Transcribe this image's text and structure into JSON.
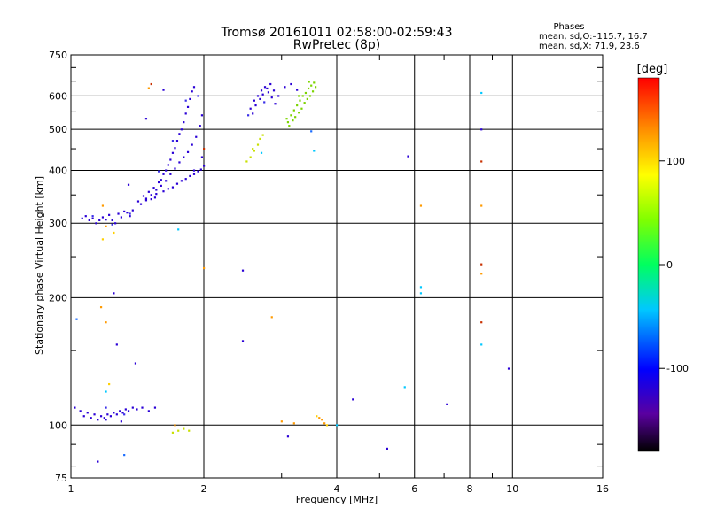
{
  "chart_data": {
    "type": "scatter",
    "title": "Tromsø 20161011 02:58:00-02:59:43",
    "subtitle": "RwPretec (8p)",
    "xlabel": "Frequency [MHz]",
    "ylabel": "Stationary phase Virtual Height [km]",
    "x_scale": "log",
    "y_scale": "log",
    "xlim": [
      1,
      16
    ],
    "ylim": [
      75,
      750
    ],
    "x_ticks": [
      1,
      2,
      4,
      6,
      8,
      10,
      16
    ],
    "x_tick_labels": [
      "1",
      "2",
      "4",
      "6",
      "8",
      "10",
      "16"
    ],
    "y_ticks": [
      75,
      100,
      200,
      300,
      400,
      500,
      600,
      750
    ],
    "y_tick_labels": [
      "75",
      "100",
      "200",
      "300",
      "400",
      "500",
      "600",
      "750"
    ],
    "grid": true,
    "phase_stats": {
      "heading": "Phases",
      "line_o": "mean, sd,O:–115.7, 16.7",
      "line_x": "mean, sd,X:  71.9, 23.6"
    },
    "colorbar": {
      "label": "[deg]",
      "range": [
        -180,
        180
      ],
      "ticks": [
        100,
        0,
        -100
      ],
      "tick_labels": [
        "100",
        "0",
        "-100"
      ]
    },
    "series": [
      {
        "color": "#2a00d6",
        "points": [
          [
            1.06,
            308
          ],
          [
            1.08,
            312
          ],
          [
            1.1,
            305
          ],
          [
            1.12,
            308
          ],
          [
            1.14,
            300
          ],
          [
            1.16,
            305
          ],
          [
            1.18,
            310
          ],
          [
            1.2,
            306
          ],
          [
            1.22,
            314
          ],
          [
            1.24,
            305
          ],
          [
            1.26,
            300
          ],
          [
            1.28,
            316
          ],
          [
            1.3,
            310
          ],
          [
            1.32,
            320
          ],
          [
            1.34,
            318
          ],
          [
            1.36,
            312
          ],
          [
            1.38,
            322
          ],
          [
            1.42,
            338
          ],
          [
            1.44,
            333
          ],
          [
            1.46,
            348
          ],
          [
            1.48,
            343
          ],
          [
            1.5,
            356
          ],
          [
            1.52,
            350
          ],
          [
            1.54,
            364
          ],
          [
            1.56,
            360
          ],
          [
            1.58,
            375
          ],
          [
            1.6,
            380
          ],
          [
            1.62,
            392
          ],
          [
            1.64,
            400
          ],
          [
            1.66,
            412
          ],
          [
            1.68,
            424
          ],
          [
            1.7,
            440
          ],
          [
            1.72,
            452
          ],
          [
            1.74,
            470
          ],
          [
            1.76,
            488
          ],
          [
            1.78,
            500
          ],
          [
            1.8,
            520
          ],
          [
            1.82,
            545
          ],
          [
            1.84,
            565
          ],
          [
            1.86,
            590
          ],
          [
            1.88,
            615
          ],
          [
            1.9,
            630
          ],
          [
            1.52,
            342
          ],
          [
            1.56,
            352
          ],
          [
            1.6,
            368
          ],
          [
            1.64,
            378
          ],
          [
            1.68,
            392
          ],
          [
            1.72,
            404
          ],
          [
            1.76,
            418
          ],
          [
            1.8,
            430
          ],
          [
            1.84,
            442
          ],
          [
            1.88,
            460
          ],
          [
            1.92,
            480
          ],
          [
            1.96,
            510
          ],
          [
            1.98,
            540
          ],
          [
            1.48,
            340
          ],
          [
            1.55,
            345
          ],
          [
            1.62,
            357
          ],
          [
            1.7,
            365
          ],
          [
            1.78,
            378
          ],
          [
            1.86,
            388
          ],
          [
            1.94,
            398
          ],
          [
            2.0,
            410
          ],
          [
            1.66,
            362
          ],
          [
            1.74,
            372
          ],
          [
            1.82,
            382
          ],
          [
            1.9,
            392
          ],
          [
            1.97,
            402
          ],
          [
            1.05,
            108
          ],
          [
            1.07,
            105
          ],
          [
            1.09,
            107
          ],
          [
            1.11,
            104
          ],
          [
            1.13,
            106
          ],
          [
            1.15,
            103
          ],
          [
            1.17,
            105
          ],
          [
            1.19,
            104
          ],
          [
            1.21,
            106
          ],
          [
            1.23,
            105
          ],
          [
            1.25,
            107
          ],
          [
            1.27,
            106
          ],
          [
            1.29,
            108
          ],
          [
            1.31,
            107
          ],
          [
            1.33,
            109
          ],
          [
            1.35,
            108
          ],
          [
            1.38,
            110
          ],
          [
            1.41,
            109
          ],
          [
            1.45,
            110
          ],
          [
            1.5,
            108
          ],
          [
            1.55,
            110
          ],
          [
            1.02,
            110
          ],
          [
            1.2,
            103
          ],
          [
            1.3,
            102
          ],
          [
            2.55,
            560
          ],
          [
            2.6,
            585
          ],
          [
            2.65,
            600
          ],
          [
            2.7,
            618
          ],
          [
            2.75,
            630
          ],
          [
            2.8,
            612
          ],
          [
            2.85,
            595
          ],
          [
            2.9,
            575
          ],
          [
            2.58,
            545
          ],
          [
            2.62,
            570
          ],
          [
            2.68,
            590
          ],
          [
            2.72,
            605
          ],
          [
            2.78,
            625
          ],
          [
            2.83,
            640
          ],
          [
            2.88,
            618
          ],
          [
            2.95,
            600
          ],
          [
            3.05,
            630
          ],
          [
            3.15,
            640
          ],
          [
            3.25,
            620
          ],
          [
            1.48,
            530
          ],
          [
            1.62,
            620
          ],
          [
            2.45,
            232
          ],
          [
            2.45,
            158
          ],
          [
            1.35,
            370
          ],
          [
            1.25,
            205
          ],
          [
            1.4,
            140
          ],
          [
            1.27,
            155
          ],
          [
            3.1,
            94
          ],
          [
            1.15,
            82
          ],
          [
            5.2,
            88
          ],
          [
            4.35,
            115
          ],
          [
            7.1,
            112
          ],
          [
            5.8,
            432
          ],
          [
            8.5,
            500
          ],
          [
            9.8,
            136
          ],
          [
            1.9,
            400
          ],
          [
            1.98,
            430
          ]
        ]
      },
      {
        "color": "#3a2fe8",
        "points": [
          [
            1.12,
            312
          ],
          [
            1.24,
            298
          ],
          [
            1.36,
            316
          ],
          [
            1.58,
            398
          ],
          [
            1.7,
            470
          ],
          [
            1.82,
            585
          ],
          [
            1.94,
            600
          ],
          [
            1.2,
            110
          ],
          [
            1.32,
            106
          ],
          [
            2.52,
            540
          ],
          [
            2.74,
            580
          ]
        ]
      },
      {
        "color": "#7cd400",
        "points": [
          [
            3.1,
            520
          ],
          [
            3.15,
            540
          ],
          [
            3.2,
            555
          ],
          [
            3.25,
            570
          ],
          [
            3.3,
            585
          ],
          [
            3.35,
            600
          ],
          [
            3.4,
            610
          ],
          [
            3.45,
            625
          ],
          [
            3.5,
            635
          ],
          [
            3.55,
            645
          ],
          [
            3.12,
            510
          ],
          [
            3.18,
            525
          ],
          [
            3.22,
            535
          ],
          [
            3.28,
            548
          ],
          [
            3.33,
            560
          ],
          [
            3.38,
            578
          ],
          [
            3.43,
            590
          ],
          [
            3.48,
            600
          ],
          [
            3.53,
            615
          ],
          [
            3.58,
            630
          ],
          [
            3.08,
            530
          ],
          [
            3.28,
            600
          ],
          [
            3.46,
            648
          ]
        ]
      },
      {
        "color": "#c8e000",
        "points": [
          [
            2.5,
            420
          ],
          [
            2.55,
            430
          ],
          [
            2.6,
            445
          ],
          [
            2.65,
            460
          ],
          [
            2.68,
            475
          ],
          [
            2.72,
            485
          ],
          [
            2.58,
            450
          ],
          [
            1.7,
            96
          ],
          [
            1.75,
            97
          ],
          [
            1.8,
            98
          ],
          [
            1.85,
            97
          ]
        ]
      },
      {
        "color": "#ff9a00",
        "points": [
          [
            1.18,
            330
          ],
          [
            1.2,
            295
          ],
          [
            1.2,
            175
          ],
          [
            1.17,
            190
          ],
          [
            2.85,
            180
          ],
          [
            3.0,
            102
          ],
          [
            3.75,
            101
          ],
          [
            3.7,
            103
          ],
          [
            3.65,
            104
          ],
          [
            3.2,
            101
          ],
          [
            6.2,
            330
          ],
          [
            8.5,
            330
          ],
          [
            8.5,
            228
          ],
          [
            1.5,
            626
          ],
          [
            2.0,
            235
          ],
          [
            1.72,
            100
          ]
        ]
      },
      {
        "color": "#ffd000",
        "points": [
          [
            1.18,
            275
          ],
          [
            1.22,
            125
          ],
          [
            3.6,
            105
          ],
          [
            3.8,
            100
          ],
          [
            1.25,
            285
          ]
        ]
      },
      {
        "color": "#c83000",
        "points": [
          [
            8.5,
            420
          ],
          [
            8.5,
            240
          ],
          [
            8.5,
            175
          ],
          [
            1.52,
            640
          ],
          [
            2.0,
            450
          ]
        ]
      },
      {
        "color": "#00c8ff",
        "points": [
          [
            1.2,
            120
          ],
          [
            2.7,
            440
          ],
          [
            3.55,
            445
          ],
          [
            4.0,
            100
          ],
          [
            5.7,
            123
          ],
          [
            6.2,
            212
          ],
          [
            6.2,
            205
          ],
          [
            8.5,
            610
          ],
          [
            8.5,
            155
          ],
          [
            1.75,
            290
          ]
        ]
      },
      {
        "color": "#1a6cff",
        "points": [
          [
            1.03,
            178
          ],
          [
            1.32,
            85
          ],
          [
            3.5,
            495
          ]
        ]
      }
    ]
  }
}
